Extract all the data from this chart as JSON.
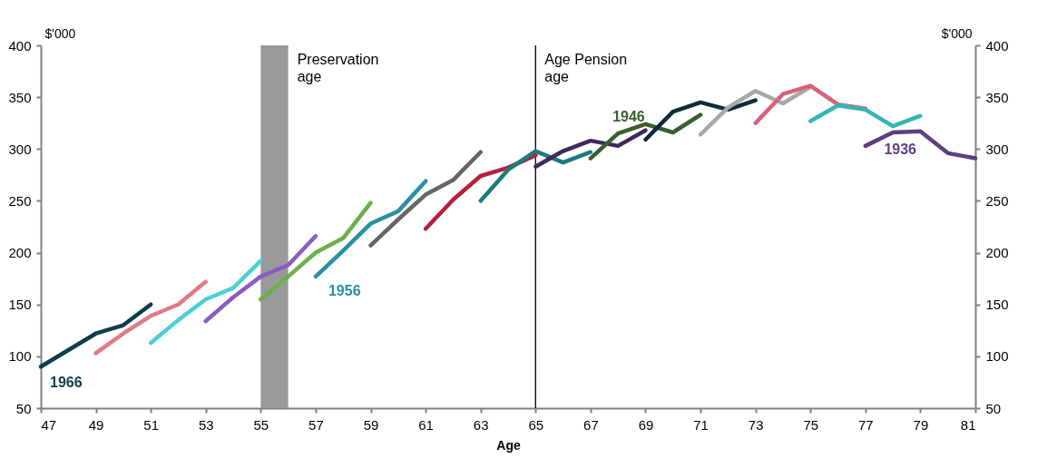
{
  "chart_data": {
    "type": "line",
    "xlabel": "Age",
    "ylabel": "$'000",
    "y2label": "$'000",
    "xlim": [
      47,
      81
    ],
    "xticks": [
      47,
      49,
      51,
      53,
      55,
      57,
      59,
      61,
      63,
      65,
      67,
      69,
      71,
      73,
      75,
      77,
      79,
      81
    ],
    "ylim": [
      50,
      400
    ],
    "yticks": [
      50,
      100,
      150,
      200,
      250,
      300,
      350,
      400
    ],
    "y2lim": [
      50,
      400
    ],
    "y2ticks": [
      50,
      100,
      150,
      200,
      250,
      300,
      350,
      400
    ],
    "grid": false,
    "legend": false,
    "marker": "none",
    "line_style": "solid",
    "series": [
      {
        "name": "1966",
        "color": "#0f3d4a",
        "x": [
          47,
          48,
          49,
          50,
          51
        ],
        "values": [
          90,
          106,
          122,
          130,
          150
        ]
      },
      {
        "color": "#e07b85",
        "x": [
          49,
          50,
          51,
          52,
          53
        ],
        "values": [
          103,
          122,
          139,
          150,
          172
        ]
      },
      {
        "color": "#4ccfd6",
        "x": [
          51,
          52,
          53,
          54,
          55
        ],
        "values": [
          113,
          135,
          155,
          166,
          192
        ]
      },
      {
        "color": "#8a5cc4",
        "x": [
          53,
          54,
          55,
          56,
          57
        ],
        "values": [
          134,
          157,
          177,
          188,
          216
        ]
      },
      {
        "color": "#6ab04c",
        "x": [
          55,
          56,
          57,
          58,
          59
        ],
        "values": [
          155,
          177,
          200,
          214,
          248
        ]
      },
      {
        "name": "1956",
        "color": "#2a8fa8",
        "x": [
          57,
          58,
          59,
          60,
          61
        ],
        "values": [
          177,
          202,
          228,
          240,
          269
        ]
      },
      {
        "color": "#666666",
        "x": [
          59,
          60,
          61,
          62,
          63
        ],
        "values": [
          207,
          232,
          256,
          270,
          297
        ]
      },
      {
        "color": "#b5203a",
        "x": [
          61,
          62,
          63,
          64,
          65
        ],
        "values": [
          223,
          251,
          274,
          282,
          294
        ]
      },
      {
        "color": "#1f7a7a",
        "x": [
          63,
          64,
          65,
          66,
          67
        ],
        "values": [
          250,
          280,
          298,
          287,
          297
        ]
      },
      {
        "color": "#3d2a5c",
        "x": [
          65,
          66,
          67,
          68,
          69
        ],
        "values": [
          283,
          298,
          308,
          303,
          318
        ]
      },
      {
        "name": "1946",
        "color": "#3a5e2e",
        "x": [
          67,
          68,
          69,
          70,
          71
        ],
        "values": [
          291,
          315,
          324,
          316,
          333
        ]
      },
      {
        "color": "#0d2b3a",
        "x": [
          69,
          70,
          71,
          72,
          73
        ],
        "values": [
          309,
          336,
          345,
          338,
          347
        ]
      },
      {
        "color": "#a8a8a8",
        "x": [
          71,
          72,
          73,
          74,
          75
        ],
        "values": [
          314,
          340,
          356,
          344,
          360
        ]
      },
      {
        "color": "#d9607a",
        "x": [
          73,
          74,
          75,
          76,
          77
        ],
        "values": [
          325,
          353,
          361,
          343,
          339
        ]
      },
      {
        "color": "#33b5b5",
        "x": [
          75,
          76,
          77,
          78,
          79
        ],
        "values": [
          327,
          342,
          338,
          322,
          332
        ]
      },
      {
        "name": "1936",
        "color": "#5c3f80",
        "x": [
          77,
          78,
          79,
          80,
          81
        ],
        "values": [
          303,
          316,
          317,
          296,
          291
        ]
      }
    ],
    "bands": [
      {
        "axis": "x",
        "from": 55,
        "to": 56,
        "label": "Preservation age",
        "color": "#999999"
      }
    ],
    "ref_lines": [
      {
        "axis": "x",
        "value": 65,
        "label": "Age Pension age",
        "color": "#000000",
        "line_style": "solid"
      }
    ]
  }
}
